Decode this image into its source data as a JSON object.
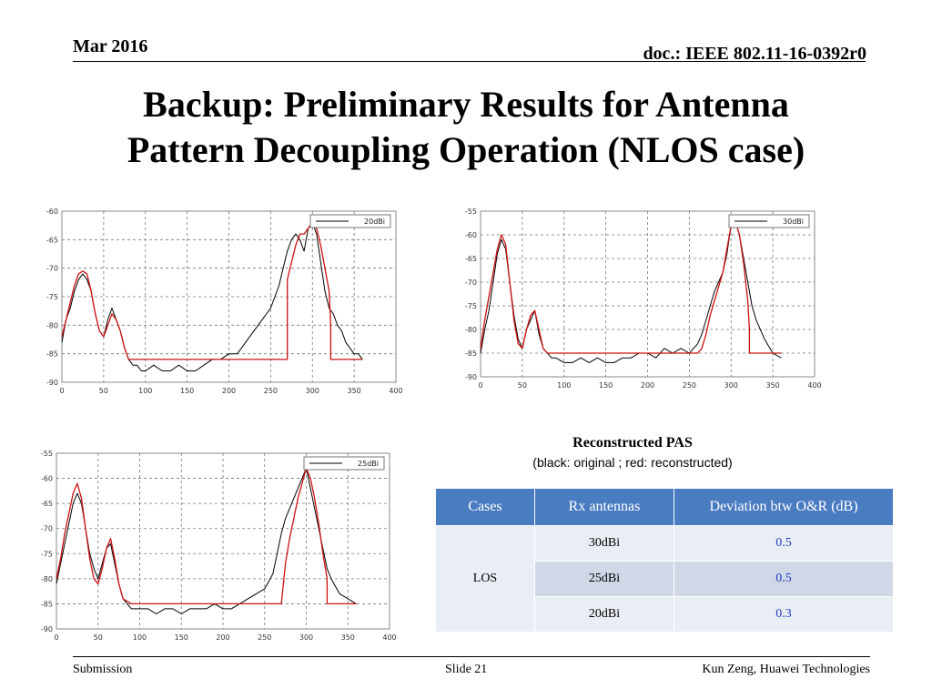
{
  "header": {
    "date": "Mar 2016",
    "doc": "doc.: IEEE 802.11-16-0392r0"
  },
  "title": {
    "line1": "Backup: Preliminary Results for Antenna",
    "line2": "Pattern Decoupling Operation (NLOS case)"
  },
  "caption": {
    "title": "Reconstructed PAS",
    "subtitle": "(black: original ;    red: reconstructed)"
  },
  "colors": {
    "original": "#000000",
    "reconstructed": "#cc1111",
    "table_header": "#4a7cc1",
    "deviation_text": "#1f3ec8"
  },
  "chart_data": [
    {
      "type": "line",
      "title": "",
      "legend": "20dBi",
      "legend_position": "top-right",
      "xlim": [
        0,
        400
      ],
      "ylim": [
        -90,
        -60
      ],
      "x_ticks": [
        0,
        50,
        100,
        150,
        200,
        250,
        300,
        350,
        400
      ],
      "y_ticks": [
        -60,
        -65,
        -70,
        -75,
        -80,
        -85,
        -90
      ],
      "grid": true,
      "series": [
        {
          "name": "original",
          "color": "black",
          "x": [
            0,
            5,
            10,
            15,
            20,
            25,
            30,
            35,
            40,
            45,
            50,
            55,
            60,
            65,
            70,
            75,
            80,
            85,
            90,
            95,
            100,
            110,
            120,
            130,
            140,
            150,
            160,
            170,
            180,
            190,
            200,
            210,
            220,
            230,
            240,
            250,
            260,
            265,
            270,
            275,
            280,
            285,
            290,
            295,
            300,
            305,
            310,
            315,
            320,
            325,
            330,
            335,
            340,
            345,
            350,
            355,
            360
          ],
          "y": [
            -83,
            -79,
            -77,
            -74,
            -72,
            -71,
            -72,
            -74,
            -78,
            -81,
            -82,
            -79,
            -77,
            -79,
            -81,
            -84,
            -86,
            -87,
            -87,
            -88,
            -88,
            -87,
            -88,
            -88,
            -87,
            -88,
            -88,
            -87,
            -86,
            -86,
            -85,
            -85,
            -83,
            -81,
            -79,
            -77,
            -73,
            -70,
            -67,
            -65,
            -64,
            -65,
            -67,
            -63,
            -62,
            -64,
            -69,
            -74,
            -77,
            -78,
            -80,
            -81,
            -83,
            -84,
            -85,
            -85,
            -86
          ]
        },
        {
          "name": "reconstructed",
          "color": "red",
          "x": [
            0,
            5,
            10,
            15,
            20,
            25,
            30,
            35,
            40,
            45,
            50,
            55,
            60,
            65,
            70,
            75,
            80,
            90,
            100,
            150,
            200,
            250,
            260,
            270,
            270,
            275,
            280,
            285,
            290,
            295,
            300,
            305,
            310,
            320,
            322,
            322,
            360
          ],
          "y": [
            -82,
            -79,
            -76,
            -73,
            -71,
            -70.5,
            -71,
            -74,
            -78,
            -81,
            -82,
            -80,
            -78,
            -79,
            -81,
            -84,
            -86,
            -86,
            -86,
            -86,
            -86,
            -86,
            -86,
            -86,
            -72,
            -69,
            -66,
            -64,
            -64,
            -63,
            -62,
            -63,
            -66,
            -74,
            -80,
            -86,
            -86
          ]
        }
      ]
    },
    {
      "type": "line",
      "title": "",
      "legend": "30dBi",
      "legend_position": "top-right",
      "xlim": [
        0,
        400
      ],
      "ylim": [
        -90,
        -55
      ],
      "x_ticks": [
        0,
        50,
        100,
        150,
        200,
        250,
        300,
        350,
        400
      ],
      "y_ticks": [
        -55,
        -60,
        -65,
        -70,
        -75,
        -80,
        -85,
        -90
      ],
      "grid": true,
      "series": [
        {
          "name": "original",
          "color": "black",
          "x": [
            0,
            5,
            10,
            15,
            20,
            25,
            30,
            35,
            40,
            45,
            50,
            55,
            60,
            65,
            70,
            75,
            80,
            85,
            90,
            100,
            110,
            120,
            130,
            140,
            150,
            160,
            170,
            180,
            190,
            200,
            210,
            220,
            230,
            240,
            250,
            260,
            265,
            270,
            275,
            280,
            285,
            290,
            295,
            300,
            305,
            310,
            315,
            320,
            325,
            330,
            340,
            350,
            360
          ],
          "y": [
            -85,
            -80,
            -76,
            -70,
            -64,
            -61,
            -63,
            -70,
            -77,
            -82,
            -84,
            -80,
            -78,
            -76,
            -81,
            -84,
            -85,
            -86,
            -86,
            -87,
            -87,
            -86,
            -87,
            -86,
            -87,
            -87,
            -86,
            -86,
            -85,
            -85,
            -86,
            -84,
            -85,
            -84,
            -85,
            -83,
            -81,
            -78,
            -75,
            -72,
            -70,
            -68,
            -64,
            -58,
            -57,
            -60,
            -65,
            -70,
            -75,
            -78,
            -82,
            -85,
            -86
          ]
        },
        {
          "name": "reconstructed",
          "color": "red",
          "x": [
            0,
            5,
            10,
            15,
            20,
            25,
            30,
            35,
            40,
            45,
            50,
            55,
            60,
            65,
            70,
            75,
            80,
            90,
            150,
            200,
            250,
            260,
            265,
            270,
            275,
            280,
            285,
            290,
            295,
            300,
            305,
            310,
            315,
            320,
            322,
            322,
            360
          ],
          "y": [
            -84,
            -78,
            -73,
            -68,
            -63,
            -60,
            -62,
            -70,
            -78,
            -83,
            -84,
            -80,
            -77,
            -76,
            -80,
            -84,
            -85,
            -85,
            -85,
            -85,
            -85,
            -85,
            -84,
            -81,
            -77,
            -74,
            -71,
            -68,
            -63,
            -58,
            -57,
            -60,
            -66,
            -74,
            -80,
            -85,
            -85
          ]
        }
      ]
    },
    {
      "type": "line",
      "title": "",
      "legend": "25dBi",
      "legend_position": "top-right",
      "xlim": [
        0,
        400
      ],
      "ylim": [
        -90,
        -55
      ],
      "x_ticks": [
        0,
        50,
        100,
        150,
        200,
        250,
        300,
        350,
        400
      ],
      "y_ticks": [
        -55,
        -60,
        -65,
        -70,
        -75,
        -80,
        -85,
        -90
      ],
      "grid": true,
      "series": [
        {
          "name": "original",
          "color": "black",
          "x": [
            0,
            5,
            10,
            15,
            20,
            25,
            30,
            35,
            40,
            45,
            50,
            55,
            60,
            65,
            70,
            75,
            80,
            85,
            90,
            95,
            100,
            110,
            120,
            130,
            140,
            150,
            160,
            170,
            180,
            190,
            200,
            210,
            220,
            230,
            240,
            250,
            260,
            265,
            270,
            275,
            280,
            285,
            290,
            295,
            300,
            305,
            310,
            315,
            320,
            325,
            330,
            340,
            350,
            360
          ],
          "y": [
            -81,
            -77,
            -73,
            -69,
            -65,
            -63,
            -65,
            -70,
            -75,
            -78,
            -80,
            -77,
            -74,
            -73,
            -77,
            -81,
            -84,
            -85,
            -86,
            -86,
            -86,
            -86,
            -87,
            -86,
            -86,
            -87,
            -86,
            -86,
            -86,
            -85,
            -86,
            -86,
            -85,
            -84,
            -83,
            -82,
            -79,
            -75,
            -71,
            -68,
            -66,
            -64,
            -62,
            -60,
            -58,
            -62,
            -66,
            -70,
            -74,
            -78,
            -80,
            -83,
            -84,
            -85
          ]
        },
        {
          "name": "reconstructed",
          "color": "red",
          "x": [
            0,
            5,
            10,
            15,
            20,
            25,
            30,
            35,
            40,
            45,
            50,
            55,
            60,
            65,
            70,
            75,
            80,
            90,
            150,
            200,
            250,
            260,
            270,
            275,
            280,
            285,
            290,
            295,
            300,
            305,
            310,
            315,
            320,
            325,
            325,
            360
          ],
          "y": [
            -80,
            -76,
            -71,
            -67,
            -63,
            -61,
            -64,
            -70,
            -76,
            -80,
            -81,
            -78,
            -74,
            -72,
            -76,
            -81,
            -84,
            -85,
            -85,
            -85,
            -85,
            -85,
            -85,
            -77,
            -72,
            -68,
            -64,
            -61,
            -58,
            -60,
            -64,
            -69,
            -75,
            -80,
            -85,
            -85
          ]
        }
      ]
    }
  ],
  "table": {
    "headers": [
      "Cases",
      "Rx antennas",
      "Deviation btw O&R (dB)"
    ],
    "case": "LOS",
    "rows": [
      {
        "rx": "30dBi",
        "dev": "0.5"
      },
      {
        "rx": "25dBi",
        "dev": "0.5"
      },
      {
        "rx": "20dBi",
        "dev": "0.3"
      }
    ]
  },
  "footer": {
    "left": "Submission",
    "center": "Slide 21",
    "right": "Kun Zeng, Huawei Technologies"
  }
}
